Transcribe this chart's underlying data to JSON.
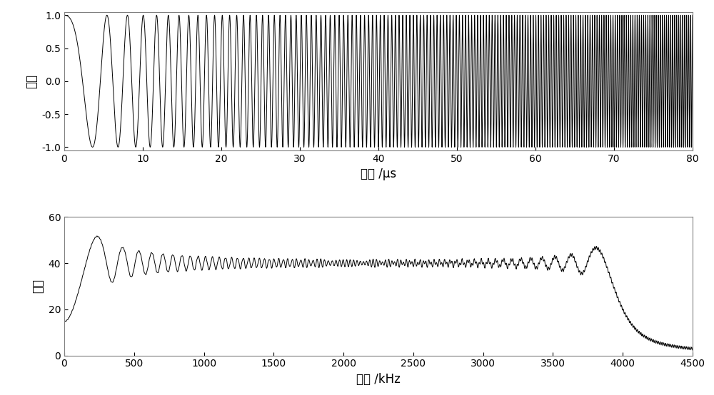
{
  "fig_width": 10.0,
  "fig_height": 5.54,
  "dpi": 100,
  "background_color": "#ffffff",
  "top_plot": {
    "xlabel": "时间 /μs",
    "ylabel": "幅度",
    "xlim": [
      0,
      80
    ],
    "ylim": [
      -1.05,
      1.05
    ],
    "xticks": [
      0,
      10,
      20,
      30,
      40,
      50,
      60,
      70,
      80
    ],
    "yticks": [
      -1,
      -0.5,
      0,
      0.5,
      1
    ],
    "line_color": "#000000",
    "line_width": 0.7,
    "t_start": 0,
    "t_end": 80,
    "num_points": 80000,
    "f_start_MHz": 0.05,
    "f_end_MHz": 4.0
  },
  "bottom_plot": {
    "xlabel": "频率 /kHz",
    "ylabel": "幅度",
    "xlim": [
      0,
      4500
    ],
    "ylim": [
      0,
      60
    ],
    "xticks": [
      0,
      500,
      1000,
      1500,
      2000,
      2500,
      3000,
      3500,
      4000,
      4500
    ],
    "yticks": [
      0,
      20,
      40,
      60
    ],
    "line_color": "#000000",
    "line_width": 0.7,
    "flat_level": 40.0,
    "peak_level": 47.0,
    "start_level": 24.0
  },
  "font_size_label": 12,
  "font_size_tick": 10,
  "spine_color": "#808080",
  "grid_color": "#c0c0c0"
}
